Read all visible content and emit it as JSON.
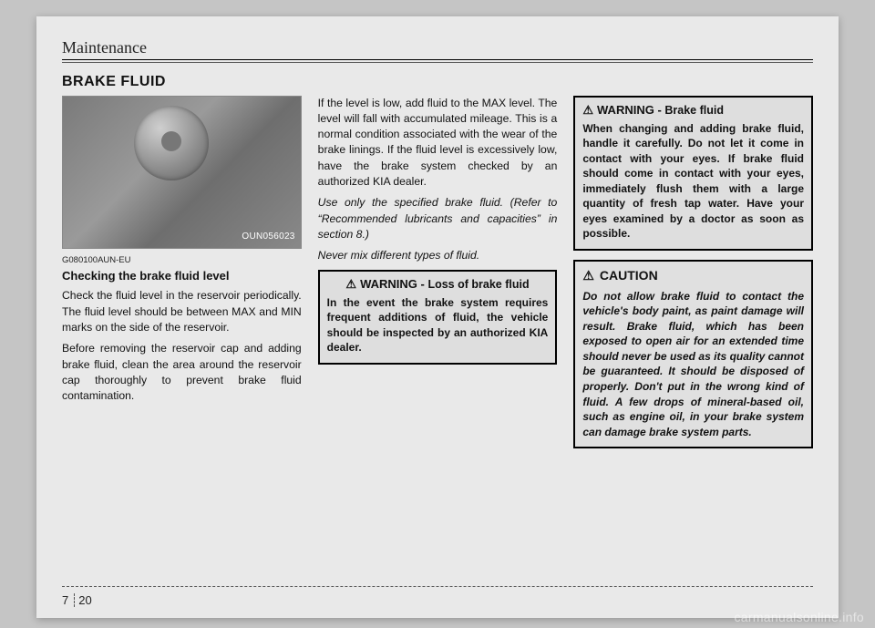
{
  "chapter_title": "Maintenance",
  "section_heading": "BRAKE FLUID",
  "photo_code": "OUN056023",
  "ref_code": "G080100AUN-EU",
  "col1": {
    "subheading": "Checking the brake fluid level",
    "p1": "Check the fluid level in the reservoir periodically. The fluid level should be between MAX and MIN marks on the side of the reservoir.",
    "p2": "Before removing the reservoir cap and adding brake fluid, clean the area around the reservoir cap thoroughly to prevent brake fluid contamination."
  },
  "col2": {
    "p1": "If the level is low, add fluid to the MAX level. The level will fall with accumulated mileage. This is a normal condition associated with the wear of the brake linings. If the fluid level is excessively low, have the brake system checked by an authorized KIA dealer.",
    "p2": "Use only the specified brake fluid. (Refer to “Recommended lubricants and capacities” in section 8.)",
    "p3": "Never mix different types of fluid.",
    "warning_title_pre": "WARNING - ",
    "warning_title_sub": "Loss of brake fluid",
    "warning_body": "In the event the brake system requires frequent additions of fluid, the vehicle should be inspected by an authorized KIA dealer."
  },
  "col3": {
    "warning_title_pre": "WARNING - ",
    "warning_title_sub": "Brake fluid",
    "warning_body": "When changing and adding brake fluid, handle it carefully. Do not let it come in contact with your eyes. If brake fluid should come in contact with your eyes, immediately flush them with a large quantity of fresh tap water. Have your eyes examined by a doctor as soon as possible.",
    "caution_title": "CAUTION",
    "caution_body": "Do not allow brake fluid to contact the vehicle's body paint, as paint damage will result. Brake fluid, which has been exposed to open air for an extended time should never be used as its quality cannot be guaranteed. It should be disposed of properly. Don't put in the wrong kind of fluid. A few drops of mineral-based oil, such as engine oil, in your brake system can damage brake system parts."
  },
  "page_chapter": "7",
  "page_number": "20",
  "watermark": "carmanualsonline.info"
}
